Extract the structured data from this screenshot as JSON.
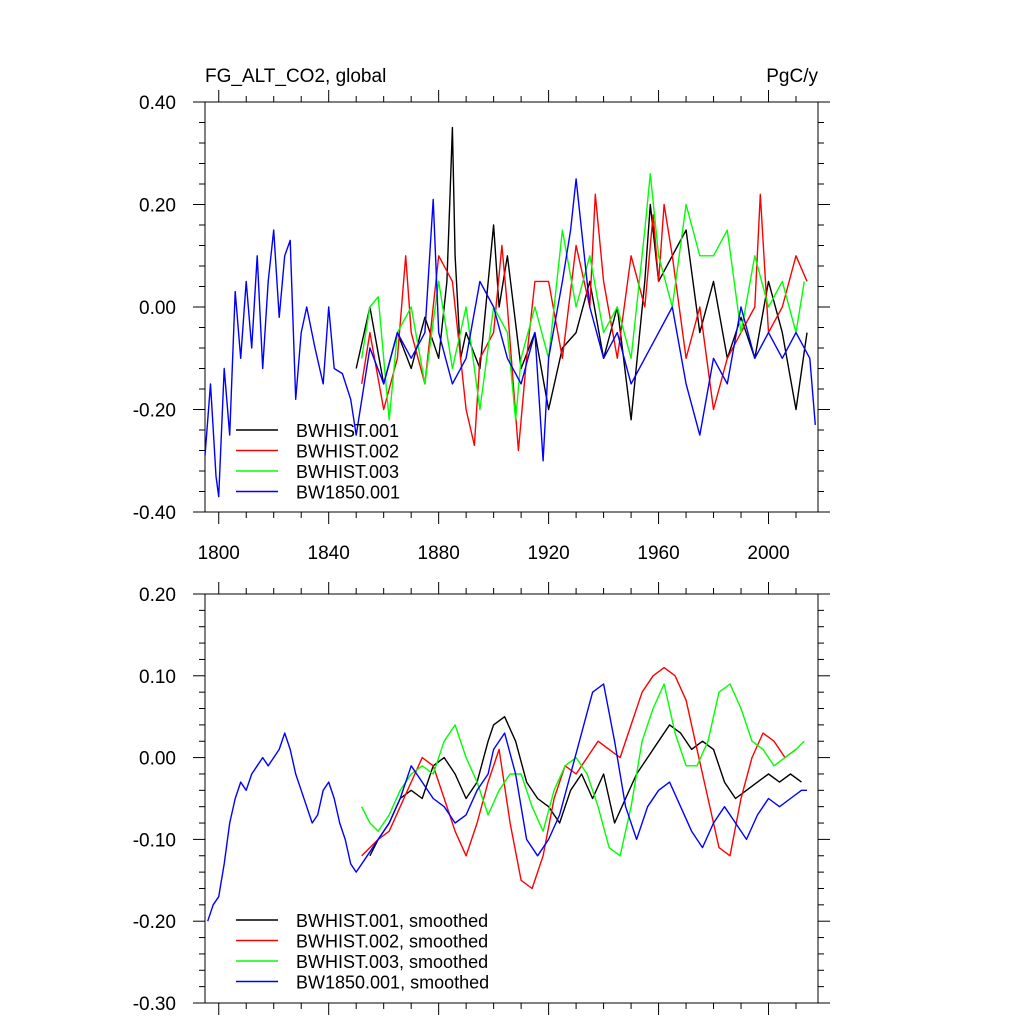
{
  "figure": {
    "title_left": "FG_ALT_CO2, global",
    "title_right": "PgC/y"
  },
  "chart_data": [
    {
      "type": "line",
      "title": "FG_ALT_CO2, global",
      "units": "PgC/y",
      "xlim": [
        1795,
        2018
      ],
      "ylim": [
        -0.4,
        0.4
      ],
      "x_ticks": [
        1800,
        1840,
        1880,
        1920,
        1960,
        2000
      ],
      "x_tick_labels": [
        "1800",
        "1840",
        "1880",
        "1920",
        "1960",
        "2000"
      ],
      "y_ticks": [
        -0.4,
        -0.2,
        0.0,
        0.2,
        0.4
      ],
      "y_tick_labels": [
        "-0.40",
        "-0.20",
        "0.00",
        "0.20",
        "0.40"
      ],
      "legend_position": "bottom-left",
      "grid": false,
      "series": [
        {
          "name": "BWHIST.001",
          "color": "#000000",
          "x": [
            1850,
            1855,
            1860,
            1865,
            1870,
            1875,
            1880,
            1883,
            1884,
            1885,
            1886,
            1888,
            1890,
            1895,
            1900,
            1902,
            1905,
            1910,
            1915,
            1920,
            1925,
            1930,
            1935,
            1940,
            1945,
            1950,
            1955,
            1957,
            1960,
            1965,
            1970,
            1975,
            1980,
            1985,
            1990,
            1995,
            2000,
            2005,
            2010,
            2014
          ],
          "y": [
            -0.12,
            0.0,
            -0.15,
            -0.05,
            -0.12,
            -0.02,
            -0.1,
            0.05,
            0.2,
            0.35,
            0.1,
            -0.1,
            -0.05,
            -0.12,
            0.16,
            0.0,
            0.1,
            -0.12,
            -0.05,
            -0.2,
            -0.08,
            -0.05,
            0.05,
            -0.1,
            0.0,
            -0.22,
            0.05,
            0.2,
            0.05,
            0.1,
            0.15,
            -0.05,
            0.05,
            -0.1,
            -0.02,
            -0.1,
            0.05,
            -0.05,
            -0.2,
            -0.05
          ]
        },
        {
          "name": "BWHIST.002",
          "color": "#ff0000",
          "x": [
            1852,
            1855,
            1860,
            1865,
            1868,
            1870,
            1875,
            1880,
            1885,
            1890,
            1893,
            1895,
            1900,
            1903,
            1905,
            1909,
            1912,
            1915,
            1920,
            1925,
            1930,
            1935,
            1937,
            1940,
            1945,
            1950,
            1955,
            1958,
            1960,
            1962,
            1965,
            1970,
            1975,
            1980,
            1985,
            1990,
            1995,
            1997,
            2000,
            2005,
            2010,
            2014
          ],
          "y": [
            -0.15,
            -0.05,
            -0.2,
            -0.1,
            0.1,
            -0.05,
            -0.15,
            0.1,
            0.05,
            -0.2,
            -0.27,
            -0.1,
            -0.05,
            0.12,
            0.0,
            -0.28,
            -0.1,
            0.05,
            0.05,
            -0.1,
            0.12,
            0.0,
            0.22,
            0.05,
            -0.1,
            0.1,
            0.0,
            0.18,
            0.05,
            0.2,
            0.1,
            -0.1,
            0.0,
            -0.2,
            -0.1,
            -0.05,
            0.0,
            0.22,
            -0.05,
            0.0,
            0.1,
            0.05
          ]
        },
        {
          "name": "BWHIST.003",
          "color": "#00ff00",
          "x": [
            1852,
            1855,
            1858,
            1862,
            1865,
            1870,
            1875,
            1880,
            1885,
            1890,
            1895,
            1900,
            1905,
            1908,
            1910,
            1915,
            1920,
            1925,
            1930,
            1935,
            1940,
            1945,
            1950,
            1955,
            1957,
            1960,
            1965,
            1970,
            1975,
            1980,
            1985,
            1990,
            1995,
            2000,
            2005,
            2010,
            2013
          ],
          "y": [
            -0.1,
            0.0,
            0.02,
            -0.22,
            -0.05,
            0.0,
            -0.15,
            0.05,
            -0.12,
            0.0,
            -0.2,
            0.0,
            -0.05,
            -0.22,
            -0.1,
            0.0,
            -0.1,
            0.15,
            0.0,
            0.1,
            -0.05,
            0.0,
            -0.1,
            0.15,
            0.26,
            0.1,
            0.0,
            0.2,
            0.1,
            0.1,
            0.15,
            -0.05,
            0.1,
            0.0,
            0.05,
            -0.05,
            0.05
          ]
        },
        {
          "name": "BW1850.001",
          "color": "#0000ff",
          "x": [
            1795,
            1797,
            1799,
            1800,
            1802,
            1804,
            1806,
            1808,
            1810,
            1812,
            1814,
            1816,
            1818,
            1820,
            1822,
            1824,
            1826,
            1828,
            1830,
            1832,
            1835,
            1838,
            1840,
            1842,
            1845,
            1848,
            1850,
            1855,
            1860,
            1865,
            1870,
            1875,
            1878,
            1880,
            1885,
            1890,
            1895,
            1900,
            1905,
            1910,
            1915,
            1918,
            1920,
            1925,
            1928,
            1930,
            1935,
            1940,
            1945,
            1950,
            1955,
            1960,
            1965,
            1970,
            1975,
            1980,
            1985,
            1990,
            1995,
            2000,
            2005,
            2010,
            2015,
            2017
          ],
          "y": [
            -0.29,
            -0.15,
            -0.33,
            -0.37,
            -0.12,
            -0.25,
            0.03,
            -0.1,
            0.05,
            -0.08,
            0.1,
            -0.12,
            0.05,
            0.15,
            -0.02,
            0.1,
            0.13,
            -0.18,
            -0.05,
            0.0,
            -0.08,
            -0.15,
            0.0,
            -0.12,
            -0.13,
            -0.18,
            -0.25,
            -0.08,
            -0.15,
            -0.05,
            -0.1,
            -0.05,
            0.21,
            -0.05,
            -0.15,
            -0.1,
            0.05,
            0.0,
            -0.1,
            -0.15,
            -0.05,
            -0.3,
            -0.1,
            0.05,
            0.15,
            0.25,
            0.0,
            -0.1,
            -0.05,
            -0.15,
            -0.1,
            -0.05,
            0.0,
            -0.15,
            -0.25,
            -0.1,
            -0.15,
            0.0,
            -0.1,
            -0.05,
            -0.1,
            -0.05,
            -0.1,
            -0.23
          ]
        }
      ]
    },
    {
      "type": "line",
      "xlim": [
        1795,
        2018
      ],
      "ylim": [
        -0.3,
        0.2
      ],
      "x_ticks": [
        1800,
        1840,
        1880,
        1920,
        1960,
        2000
      ],
      "x_tick_labels": [],
      "y_ticks": [
        -0.3,
        -0.2,
        -0.1,
        0.0,
        0.1,
        0.2
      ],
      "y_tick_labels": [
        "-0.30",
        "-0.20",
        "-0.10",
        "0.00",
        "0.10",
        "0.20"
      ],
      "legend_position": "bottom-left",
      "grid": false,
      "series": [
        {
          "name": "BWHIST.001, smoothed",
          "color": "#000000",
          "x": [
            1855,
            1858,
            1862,
            1866,
            1870,
            1874,
            1878,
            1882,
            1886,
            1890,
            1894,
            1898,
            1900,
            1904,
            1908,
            1912,
            1916,
            1920,
            1924,
            1928,
            1932,
            1936,
            1940,
            1944,
            1948,
            1952,
            1956,
            1960,
            1964,
            1968,
            1972,
            1976,
            1980,
            1984,
            1988,
            1992,
            1996,
            2000,
            2004,
            2008,
            2012
          ],
          "y": [
            -0.12,
            -0.1,
            -0.08,
            -0.05,
            -0.04,
            -0.05,
            -0.01,
            0.0,
            -0.02,
            -0.05,
            -0.03,
            0.02,
            0.04,
            0.05,
            0.02,
            -0.03,
            -0.05,
            -0.06,
            -0.08,
            -0.04,
            -0.02,
            -0.05,
            -0.02,
            -0.08,
            -0.05,
            -0.02,
            0.0,
            0.02,
            0.04,
            0.03,
            0.01,
            0.02,
            0.01,
            -0.03,
            -0.05,
            -0.04,
            -0.03,
            -0.02,
            -0.03,
            -0.02,
            -0.03
          ]
        },
        {
          "name": "BWHIST.002, smoothed",
          "color": "#ff0000",
          "x": [
            1852,
            1855,
            1858,
            1862,
            1866,
            1870,
            1874,
            1878,
            1882,
            1886,
            1890,
            1894,
            1898,
            1902,
            1906,
            1910,
            1914,
            1918,
            1922,
            1926,
            1930,
            1934,
            1938,
            1942,
            1946,
            1950,
            1954,
            1958,
            1962,
            1966,
            1970,
            1974,
            1978,
            1982,
            1986,
            1990,
            1994,
            1998,
            2002,
            2006,
            2010
          ],
          "y": [
            -0.12,
            -0.11,
            -0.1,
            -0.09,
            -0.06,
            -0.03,
            0.0,
            -0.01,
            -0.05,
            -0.09,
            -0.12,
            -0.08,
            -0.03,
            0.01,
            -0.08,
            -0.15,
            -0.16,
            -0.12,
            -0.05,
            -0.01,
            -0.02,
            0.0,
            0.02,
            0.01,
            0.0,
            0.04,
            0.08,
            0.1,
            0.11,
            0.1,
            0.07,
            0.01,
            -0.05,
            -0.11,
            -0.12,
            -0.05,
            0.0,
            0.03,
            0.02,
            0.0,
            0.01
          ]
        },
        {
          "name": "BWHIST.003, smoothed",
          "color": "#00ff00",
          "x": [
            1852,
            1855,
            1858,
            1862,
            1866,
            1870,
            1874,
            1878,
            1882,
            1886,
            1890,
            1894,
            1898,
            1902,
            1906,
            1910,
            1914,
            1918,
            1922,
            1926,
            1930,
            1934,
            1938,
            1942,
            1946,
            1950,
            1954,
            1958,
            1962,
            1966,
            1970,
            1974,
            1978,
            1982,
            1986,
            1990,
            1994,
            1998,
            2002,
            2006,
            2010,
            2013
          ],
          "y": [
            -0.06,
            -0.08,
            -0.09,
            -0.07,
            -0.04,
            -0.02,
            -0.01,
            -0.02,
            0.02,
            0.04,
            0.0,
            -0.03,
            -0.07,
            -0.04,
            -0.02,
            -0.02,
            -0.06,
            -0.09,
            -0.04,
            -0.01,
            0.0,
            -0.02,
            -0.06,
            -0.11,
            -0.12,
            -0.06,
            0.02,
            0.06,
            0.09,
            0.03,
            -0.01,
            -0.01,
            0.02,
            0.08,
            0.09,
            0.06,
            0.02,
            0.01,
            -0.01,
            0.0,
            0.01,
            0.02
          ]
        },
        {
          "name": "BW1850.001, smoothed",
          "color": "#0000ff",
          "x": [
            1796,
            1798,
            1800,
            1802,
            1804,
            1806,
            1808,
            1810,
            1812,
            1814,
            1816,
            1818,
            1820,
            1822,
            1824,
            1826,
            1828,
            1830,
            1832,
            1834,
            1836,
            1838,
            1840,
            1842,
            1844,
            1846,
            1848,
            1850,
            1854,
            1858,
            1862,
            1866,
            1870,
            1874,
            1878,
            1882,
            1886,
            1890,
            1894,
            1898,
            1900,
            1904,
            1908,
            1912,
            1916,
            1920,
            1924,
            1928,
            1932,
            1936,
            1940,
            1944,
            1948,
            1952,
            1956,
            1960,
            1964,
            1968,
            1972,
            1976,
            1980,
            1984,
            1988,
            1992,
            1996,
            2000,
            2004,
            2008,
            2012,
            2014
          ],
          "y": [
            -0.2,
            -0.18,
            -0.17,
            -0.13,
            -0.08,
            -0.05,
            -0.03,
            -0.04,
            -0.02,
            -0.01,
            0.0,
            -0.01,
            0.0,
            0.01,
            0.03,
            0.01,
            -0.02,
            -0.04,
            -0.06,
            -0.08,
            -0.07,
            -0.04,
            -0.03,
            -0.05,
            -0.08,
            -0.1,
            -0.13,
            -0.14,
            -0.12,
            -0.1,
            -0.08,
            -0.05,
            -0.01,
            -0.03,
            -0.05,
            -0.06,
            -0.08,
            -0.07,
            -0.04,
            -0.02,
            0.01,
            0.03,
            -0.02,
            -0.1,
            -0.12,
            -0.1,
            -0.07,
            -0.02,
            0.03,
            0.08,
            0.09,
            0.02,
            -0.06,
            -0.1,
            -0.06,
            -0.04,
            -0.03,
            -0.06,
            -0.09,
            -0.11,
            -0.08,
            -0.06,
            -0.08,
            -0.1,
            -0.07,
            -0.05,
            -0.06,
            -0.05,
            -0.04,
            -0.04
          ]
        }
      ]
    }
  ]
}
